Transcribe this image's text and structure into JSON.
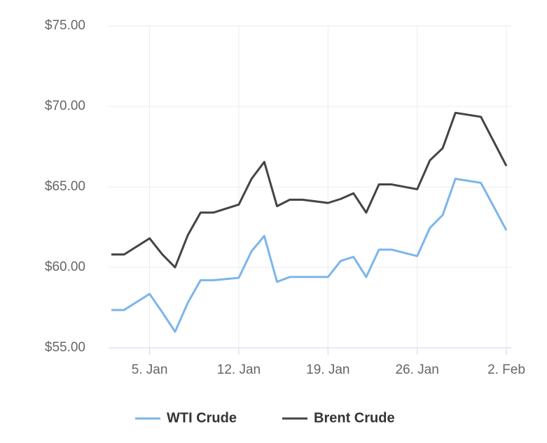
{
  "chart_data": {
    "type": "line",
    "x": [
      "2. Jan",
      "3. Jan",
      "5. Jan",
      "6. Jan",
      "7. Jan",
      "8. Jan",
      "9. Jan",
      "10. Jan",
      "12. Jan",
      "13. Jan",
      "14. Jan",
      "15. Jan",
      "16. Jan",
      "17. Jan",
      "19. Jan",
      "20. Jan",
      "21. Jan",
      "22. Jan",
      "23. Jan",
      "24. Jan",
      "26. Jan",
      "27. Jan",
      "28. Jan",
      "29. Jan",
      "31. Jan",
      "2. Feb"
    ],
    "series": [
      {
        "name": "WTI Crude",
        "color": "#7cb5ec",
        "values": [
          57.35,
          57.35,
          58.35,
          57.2,
          56.0,
          57.8,
          59.2,
          59.2,
          59.35,
          61.0,
          61.95,
          59.1,
          59.4,
          59.4,
          59.4,
          60.4,
          60.65,
          59.4,
          61.1,
          61.1,
          60.7,
          62.45,
          63.25,
          65.5,
          65.25,
          62.3
        ]
      },
      {
        "name": "Brent Crude",
        "color": "#434348",
        "values": [
          60.8,
          60.8,
          61.8,
          60.8,
          60.0,
          62.0,
          63.4,
          63.4,
          63.9,
          65.5,
          66.55,
          63.8,
          64.2,
          64.2,
          64.0,
          64.25,
          64.6,
          63.4,
          65.15,
          65.15,
          64.85,
          66.65,
          67.4,
          69.6,
          69.35,
          66.3
        ]
      }
    ],
    "ylim": [
      55,
      75
    ],
    "yticks": [
      {
        "value": 55,
        "label": "$55.00"
      },
      {
        "value": 60,
        "label": "$60.00"
      },
      {
        "value": 65,
        "label": "$65.00"
      },
      {
        "value": 70,
        "label": "$70.00"
      },
      {
        "value": 75,
        "label": "$75.00"
      }
    ],
    "xticks": [
      "5. Jan",
      "12. Jan",
      "19. Jan",
      "26. Jan",
      "2. Feb"
    ],
    "grid": true,
    "legend": "bottom"
  }
}
